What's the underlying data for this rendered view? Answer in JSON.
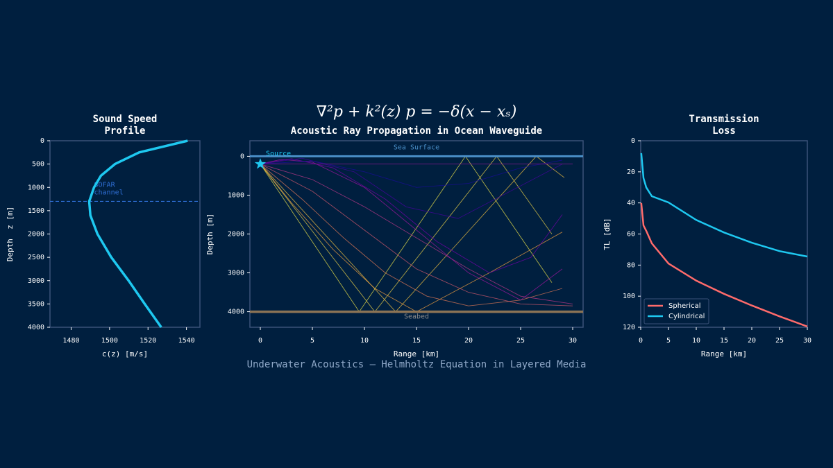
{
  "suptitle": "∇²p + k²(z) p = −δ(x − xₛ)",
  "footer": "Underwater Acoustics — Helmholtz Equation in Layered Media",
  "chart_data": [
    {
      "type": "profile",
      "title": [
        "Sound Speed",
        "Profile"
      ],
      "x_label": "c(z) [m/s]",
      "y_label": "Depth  z [m]",
      "depths": [
        0,
        250,
        500,
        750,
        1000,
        1300,
        1600,
        2000,
        2500,
        3000,
        3500,
        4000
      ],
      "series": [
        {
          "color": "#1ec8f0",
          "values": [
            1540.6,
            1515.4,
            1502.8,
            1495.5,
            1491.9,
            1489.4,
            1490,
            1493.7,
            1500.9,
            1509.9,
            1518.3,
            1526.9
          ]
        }
      ],
      "xlim": [
        1469,
        1547
      ],
      "xticks": [
        1480,
        1500,
        1520,
        1540
      ],
      "ylim": [
        0,
        4000
      ],
      "yticks": [
        0,
        500,
        1000,
        1500,
        2000,
        2500,
        3000,
        3500,
        4000
      ],
      "invert_y": true,
      "sofar_depth": 1300,
      "sofar_label": [
        "SOFAR",
        "channel"
      ],
      "sofar_color": "#2f6fd6"
    },
    {
      "type": "rays",
      "title": [
        "Acoustic Ray Propagation in Ocean Waveguide"
      ],
      "x_label": "Range [km]",
      "y_label": "Depth [m]",
      "xlim": [
        -1,
        31
      ],
      "xticks": [
        0,
        5,
        10,
        15,
        20,
        25,
        30
      ],
      "ylim": [
        -400,
        4400
      ],
      "yticks": [
        0,
        1000,
        2000,
        3000,
        4000
      ],
      "invert_y": true,
      "surface_depth": 0,
      "surface_label": "Sea Surface",
      "surface_color": "#4a8fc8",
      "seabed_depth": 4000,
      "seabed_label": "Seabed",
      "seabed_color": "#8b7355",
      "source": {
        "x": 0,
        "depth": 200,
        "label": "Source",
        "color": "#1ec8f0"
      },
      "series": [
        {
          "color": "#e8e04a",
          "x": [
            0,
            9.5,
            19.7,
            28
          ],
          "values": [
            200,
            4000,
            0,
            3250
          ]
        },
        {
          "color": "#e8d048",
          "x": [
            0,
            11,
            22.7,
            28
          ],
          "values": [
            200,
            4000,
            0,
            2000
          ]
        },
        {
          "color": "#f0c040",
          "x": [
            0,
            13,
            26.5,
            29.2
          ],
          "values": [
            200,
            4000,
            0,
            550
          ]
        },
        {
          "color": "#f0a040",
          "x": [
            0,
            3,
            7,
            11,
            15,
            22,
            29
          ],
          "values": [
            200,
            1200,
            2400,
            3400,
            4000,
            3000,
            1950
          ]
        },
        {
          "color": "#e07a55",
          "x": [
            0,
            4,
            8,
            12,
            16,
            20,
            25,
            29
          ],
          "values": [
            200,
            1100,
            2100,
            3000,
            3600,
            3850,
            3700,
            3400
          ]
        },
        {
          "color": "#d0586c",
          "x": [
            0,
            5,
            10,
            15,
            20,
            25,
            30
          ],
          "values": [
            200,
            900,
            1900,
            2900,
            3500,
            3800,
            3850
          ]
        },
        {
          "color": "#b83888",
          "x": [
            0,
            5,
            10,
            15,
            20,
            25,
            30
          ],
          "values": [
            200,
            600,
            1300,
            2100,
            2900,
            3600,
            3800
          ]
        },
        {
          "color": "#9c179e",
          "x": [
            0,
            2,
            5,
            10,
            15,
            20,
            25,
            29
          ],
          "values": [
            200,
            80,
            150,
            800,
            1900,
            3000,
            3700,
            2900
          ]
        },
        {
          "color": "#7201a8",
          "x": [
            0,
            3,
            7,
            12,
            17,
            22,
            26,
            29
          ],
          "values": [
            200,
            60,
            300,
            1100,
            2200,
            3000,
            2600,
            1500
          ]
        },
        {
          "color": "#46039f",
          "x": [
            0,
            4,
            9,
            14,
            19,
            24,
            29
          ],
          "values": [
            200,
            50,
            400,
            1300,
            1600,
            900,
            200
          ]
        },
        {
          "color": "#1a0c9a",
          "x": [
            0,
            5,
            10,
            15,
            20,
            25,
            29
          ],
          "values": [
            200,
            120,
            400,
            800,
            700,
            300,
            100
          ]
        },
        {
          "color": "#9c179e",
          "x": [
            0,
            30
          ],
          "values": [
            200,
            200
          ]
        }
      ]
    },
    {
      "type": "line",
      "title": [
        "Transmission",
        "Loss"
      ],
      "x_label": "Range [km]",
      "y_label": "TL [dB]",
      "x": [
        0.1,
        0.5,
        1,
        2,
        5,
        10,
        15,
        20,
        25,
        30
      ],
      "series": [
        {
          "name": "Spherical",
          "color": "#ff6b6b",
          "values": [
            40,
            54.5,
            58,
            66,
            79,
            90,
            98.5,
            106,
            113,
            119.5
          ]
        },
        {
          "name": "Cylindrical",
          "color": "#1ec8f0",
          "values": [
            8,
            24,
            30,
            35.7,
            39.7,
            51,
            59,
            65.6,
            71,
            74.5
          ]
        }
      ],
      "xlim": [
        0,
        30
      ],
      "xticks": [
        0,
        5,
        10,
        15,
        20,
        25,
        30
      ],
      "ylim": [
        0,
        120
      ],
      "yticks": [
        0,
        20,
        40,
        60,
        80,
        100,
        120
      ],
      "invert_y": true,
      "legend": "lower left"
    }
  ]
}
